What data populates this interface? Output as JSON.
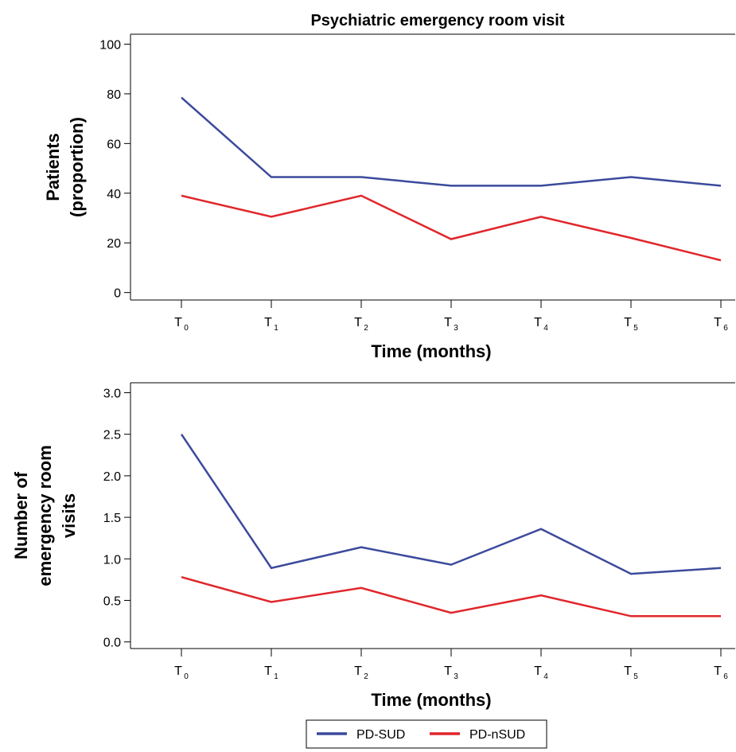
{
  "title": "Psychiatric emergency room visit",
  "legend": [
    {
      "name": "PD-SUD",
      "color": "#3b4a9c"
    },
    {
      "name": "PD-nSUD",
      "color": "#e0262b"
    }
  ],
  "categories": [
    {
      "main": "T",
      "sub": "0"
    },
    {
      "main": "T",
      "sub": "1"
    },
    {
      "main": "T",
      "sub": "2"
    },
    {
      "main": "T",
      "sub": "3"
    },
    {
      "main": "T",
      "sub": "4"
    },
    {
      "main": "T",
      "sub": "5"
    },
    {
      "main": "T",
      "sub": "6"
    }
  ],
  "chart_data": [
    {
      "type": "line",
      "title": "Psychiatric emergency room visit",
      "xlabel": "Time (months)",
      "ylabel_lines": [
        "Patients",
        "(proportion)"
      ],
      "categories": [
        "T0",
        "T1",
        "T2",
        "T3",
        "T4",
        "T5",
        "T6"
      ],
      "ylim": [
        -3,
        104
      ],
      "yticks": [
        0,
        20,
        40,
        60,
        80,
        100
      ],
      "ytick_labels": [
        "0",
        "20",
        "40",
        "60",
        "80",
        "100"
      ],
      "grid": false,
      "series": [
        {
          "name": "PD-SUD",
          "color": "#3b4a9c",
          "values": [
            78.5,
            46.5,
            46.5,
            43,
            43,
            46.5,
            43
          ]
        },
        {
          "name": "PD-nSUD",
          "color": "#e0262b",
          "values": [
            39,
            30.5,
            39,
            21.5,
            30.5,
            22,
            13
          ]
        }
      ]
    },
    {
      "type": "line",
      "title": "",
      "xlabel": "Time (months)",
      "ylabel_lines": [
        "Number of",
        "emergency room",
        "visits"
      ],
      "categories": [
        "T0",
        "T1",
        "T2",
        "T3",
        "T4",
        "T5",
        "T6"
      ],
      "ylim": [
        -0.08,
        3.12
      ],
      "yticks": [
        0,
        0.5,
        1,
        1.5,
        2,
        2.5,
        3
      ],
      "ytick_labels": [
        "0.0",
        "0.5",
        "1.0",
        "1.5",
        "2.0",
        "2.5",
        "3.0"
      ],
      "grid": false,
      "series": [
        {
          "name": "PD-SUD",
          "color": "#3b4a9c",
          "values": [
            2.5,
            0.89,
            1.14,
            0.93,
            1.36,
            0.82,
            0.89
          ]
        },
        {
          "name": "PD-nSUD",
          "color": "#e0262b",
          "values": [
            0.78,
            0.48,
            0.65,
            0.35,
            0.56,
            0.31,
            0.31
          ]
        }
      ],
      "legend_position": "bottom-center"
    }
  ]
}
